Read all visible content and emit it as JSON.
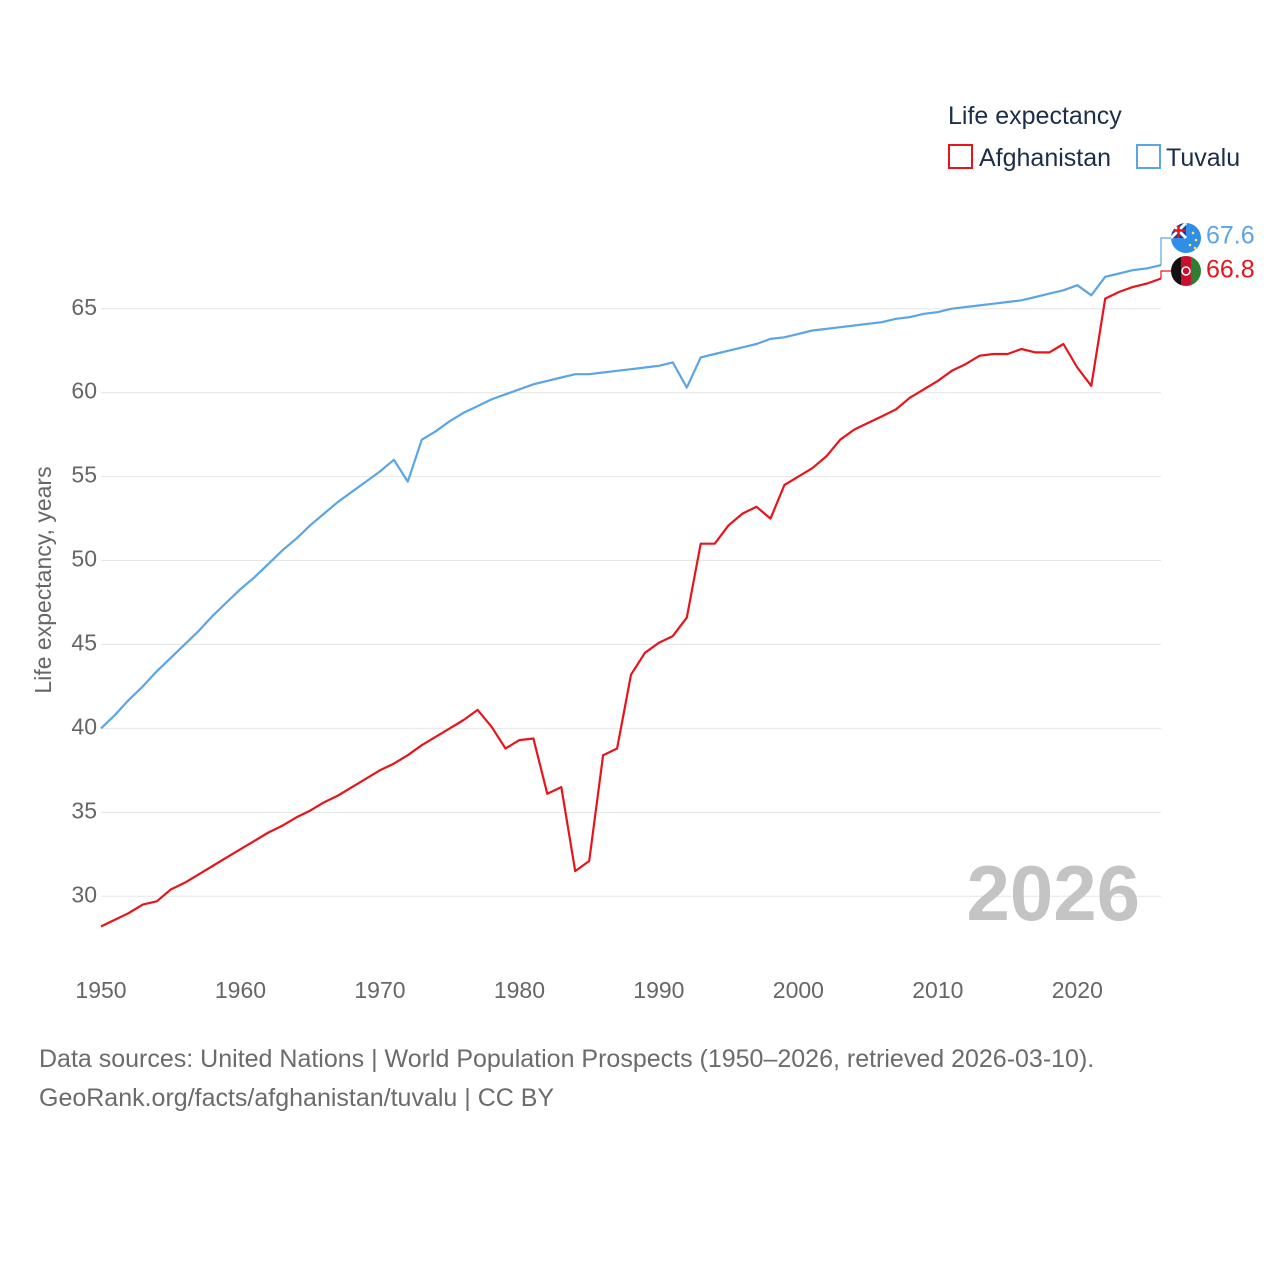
{
  "chart_data": {
    "type": "line",
    "title": "Life expectancy",
    "ylabel": "Life expectancy, years",
    "xlabel": "",
    "xlim": [
      1950,
      2026
    ],
    "ylim": [
      26.5,
      71
    ],
    "x_ticks": [
      1950,
      1960,
      1970,
      1980,
      1990,
      2000,
      2010,
      2020
    ],
    "y_ticks": [
      30,
      35,
      40,
      45,
      50,
      55,
      60,
      65
    ],
    "grid": true,
    "legend_position": "top-right",
    "year_label": "2026",
    "series": [
      {
        "name": "Afghanistan",
        "color": "#e8141b",
        "end_label": "66.8",
        "flag_icon": "afghanistan-flag-icon",
        "x": [
          1950,
          1951,
          1952,
          1953,
          1954,
          1955,
          1956,
          1957,
          1958,
          1959,
          1960,
          1961,
          1962,
          1963,
          1964,
          1965,
          1966,
          1967,
          1968,
          1969,
          1970,
          1971,
          1972,
          1973,
          1974,
          1975,
          1976,
          1977,
          1978,
          1979,
          1980,
          1981,
          1982,
          1983,
          1984,
          1985,
          1986,
          1987,
          1988,
          1989,
          1990,
          1991,
          1992,
          1993,
          1994,
          1995,
          1996,
          1997,
          1998,
          1999,
          2000,
          2001,
          2002,
          2003,
          2004,
          2005,
          2006,
          2007,
          2008,
          2009,
          2010,
          2011,
          2012,
          2013,
          2014,
          2015,
          2016,
          2017,
          2018,
          2019,
          2020,
          2021,
          2022,
          2023,
          2024,
          2025,
          2026
        ],
        "values": [
          28.2,
          28.6,
          29.0,
          29.5,
          29.7,
          30.4,
          30.8,
          31.3,
          31.8,
          32.3,
          32.8,
          33.3,
          33.8,
          34.2,
          34.7,
          35.1,
          35.6,
          36.0,
          36.5,
          37.0,
          37.5,
          37.9,
          38.4,
          39.0,
          39.5,
          40.0,
          40.5,
          41.1,
          40.1,
          38.8,
          39.3,
          39.4,
          36.1,
          36.5,
          31.5,
          32.1,
          38.4,
          38.8,
          43.2,
          44.5,
          45.1,
          45.5,
          46.6,
          51.0,
          51.0,
          52.1,
          52.8,
          53.2,
          52.5,
          54.5,
          55.0,
          55.5,
          56.2,
          57.2,
          57.8,
          58.2,
          58.6,
          59.0,
          59.7,
          60.2,
          60.7,
          61.3,
          61.7,
          62.2,
          62.3,
          62.3,
          62.6,
          62.4,
          62.4,
          62.9,
          61.5,
          60.4,
          65.6,
          66.0,
          66.3,
          66.5,
          66.8
        ]
      },
      {
        "name": "Tuvalu",
        "color": "#5aa5e6",
        "end_label": "67.6",
        "flag_icon": "tuvalu-flag-icon",
        "x": [
          1950,
          1951,
          1952,
          1953,
          1954,
          1955,
          1956,
          1957,
          1958,
          1959,
          1960,
          1961,
          1962,
          1963,
          1964,
          1965,
          1966,
          1967,
          1968,
          1969,
          1970,
          1971,
          1972,
          1973,
          1974,
          1975,
          1976,
          1977,
          1978,
          1979,
          1980,
          1981,
          1982,
          1983,
          1984,
          1985,
          1986,
          1987,
          1988,
          1989,
          1990,
          1991,
          1992,
          1993,
          1994,
          1995,
          1996,
          1997,
          1998,
          1999,
          2000,
          2001,
          2002,
          2003,
          2004,
          2005,
          2006,
          2007,
          2008,
          2009,
          2010,
          2011,
          2012,
          2013,
          2014,
          2015,
          2016,
          2017,
          2018,
          2019,
          2020,
          2021,
          2022,
          2023,
          2024,
          2025,
          2026
        ],
        "values": [
          40.0,
          40.8,
          41.7,
          42.5,
          43.4,
          44.2,
          45.0,
          45.8,
          46.7,
          47.5,
          48.3,
          49.0,
          49.8,
          50.6,
          51.3,
          52.1,
          52.8,
          53.5,
          54.1,
          54.7,
          55.3,
          56.0,
          54.7,
          57.2,
          57.7,
          58.3,
          58.8,
          59.2,
          59.6,
          59.9,
          60.2,
          60.5,
          60.7,
          60.9,
          61.1,
          61.1,
          61.2,
          61.3,
          61.4,
          61.5,
          61.6,
          61.8,
          60.3,
          62.1,
          62.3,
          62.5,
          62.7,
          62.9,
          63.2,
          63.3,
          63.5,
          63.7,
          63.8,
          63.9,
          64.0,
          64.1,
          64.2,
          64.4,
          64.5,
          64.7,
          64.8,
          65.0,
          65.1,
          65.2,
          65.3,
          65.4,
          65.5,
          65.7,
          65.9,
          66.1,
          66.4,
          65.8,
          66.9,
          67.1,
          67.3,
          67.4,
          67.6
        ]
      }
    ]
  },
  "footer": {
    "sources": "Data sources: United Nations | World Population Prospects (1950–2026, retrieved 2026-03-10).",
    "attribution": "GeoRank.org/facts/afghanistan/tuvalu | CC BY"
  }
}
